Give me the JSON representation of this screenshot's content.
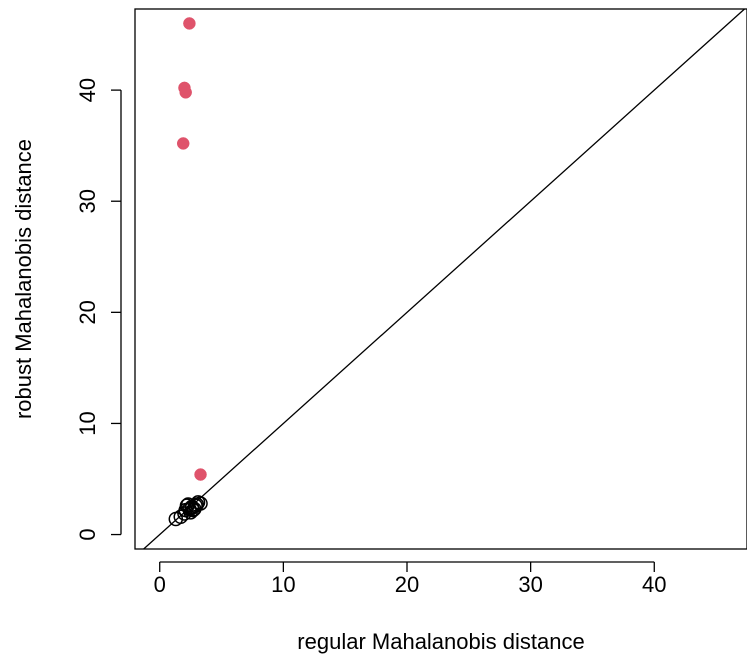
{
  "chart_data": {
    "type": "scatter",
    "title": "",
    "xlabel": "regular Mahalanobis distance",
    "ylabel": "robust Mahalanobis distance",
    "xlim": [
      -2.0,
      47.5
    ],
    "ylim": [
      -1.3,
      47.3
    ],
    "xticks": [
      0,
      10,
      20,
      30,
      40
    ],
    "yticks": [
      0,
      10,
      20,
      30,
      40
    ],
    "reference_line": "y = x",
    "colors": {
      "outlier": "#df536b",
      "regular": "#000000",
      "axis": "#000000"
    },
    "series": [
      {
        "style": "open-circle",
        "color": "#000000",
        "points": [
          [
            1.3,
            1.4
          ],
          [
            1.7,
            1.6
          ],
          [
            2.0,
            1.9
          ],
          [
            2.1,
            2.2
          ],
          [
            2.2,
            2.6
          ],
          [
            2.3,
            2.7
          ],
          [
            2.4,
            2.3
          ],
          [
            2.5,
            2.0
          ],
          [
            2.6,
            2.4
          ],
          [
            2.6,
            2.5
          ],
          [
            2.7,
            2.2
          ],
          [
            2.8,
            2.3
          ],
          [
            2.9,
            2.6
          ],
          [
            3.0,
            2.7
          ],
          [
            3.1,
            2.9
          ],
          [
            3.3,
            2.8
          ]
        ]
      },
      {
        "style": "filled-circle",
        "color": "#df536b",
        "points": [
          [
            2.4,
            46.0
          ],
          [
            2.0,
            40.2
          ],
          [
            2.1,
            39.8
          ],
          [
            1.9,
            35.2
          ],
          [
            3.3,
            5.4
          ]
        ]
      }
    ]
  }
}
